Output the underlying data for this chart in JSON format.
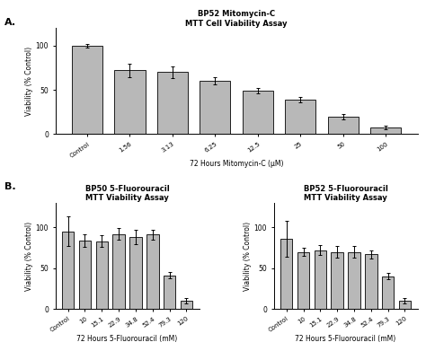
{
  "panel_A": {
    "title1": "BP52 Mitomycin-C",
    "title2": "MTT Cell Viability Assay",
    "xlabel": "72 Hours Mitomycin-C (μM)",
    "ylabel": "Viability (% Control)",
    "categories": [
      "Control",
      "1.56",
      "3.13",
      "6.25",
      "12.5",
      "25",
      "50",
      "100"
    ],
    "values": [
      100,
      72,
      70,
      60,
      49,
      39,
      20,
      7
    ],
    "errors": [
      2,
      8,
      7,
      4,
      3,
      3,
      3,
      2
    ],
    "ylim": [
      0,
      120
    ],
    "yticks": [
      0,
      50,
      100
    ]
  },
  "panel_B1": {
    "title1": "BP50 5-Fluorouracil",
    "title2": "MTT Viability Assay",
    "xlabel": "72 Hours 5-Fluorouracil (mM)",
    "ylabel": "Viability (% Control)",
    "categories": [
      "Control",
      "10",
      "15.1",
      "22.9",
      "34.8",
      "52.4",
      "79.3",
      "120"
    ],
    "values": [
      95,
      84,
      83,
      92,
      88,
      91,
      41,
      10
    ],
    "errors": [
      18,
      8,
      7,
      7,
      9,
      6,
      4,
      3
    ],
    "ylim": [
      0,
      130
    ],
    "yticks": [
      0,
      50,
      100
    ]
  },
  "panel_B2": {
    "title1": "BP52 5-Fluorouracil",
    "title2": "MTT Viability Assay",
    "xlabel": "72 Hours 5-Fluorouracil (mM)",
    "ylabel": "Viability (% Control)",
    "categories": [
      "Control",
      "10",
      "15.1",
      "22.9",
      "34.8",
      "52.4",
      "79.3",
      "120"
    ],
    "values": [
      86,
      70,
      72,
      70,
      70,
      67,
      40,
      10
    ],
    "errors": [
      22,
      5,
      6,
      7,
      7,
      5,
      4,
      3
    ],
    "ylim": [
      0,
      130
    ],
    "yticks": [
      0,
      50,
      100
    ]
  },
  "bar_color": "#b8b8b8",
  "bar_edgecolor": "#000000",
  "background_color": "#ffffff",
  "label_A": "A.",
  "label_B": "B.",
  "fig_width": 4.74,
  "fig_height": 3.91,
  "dpi": 100
}
